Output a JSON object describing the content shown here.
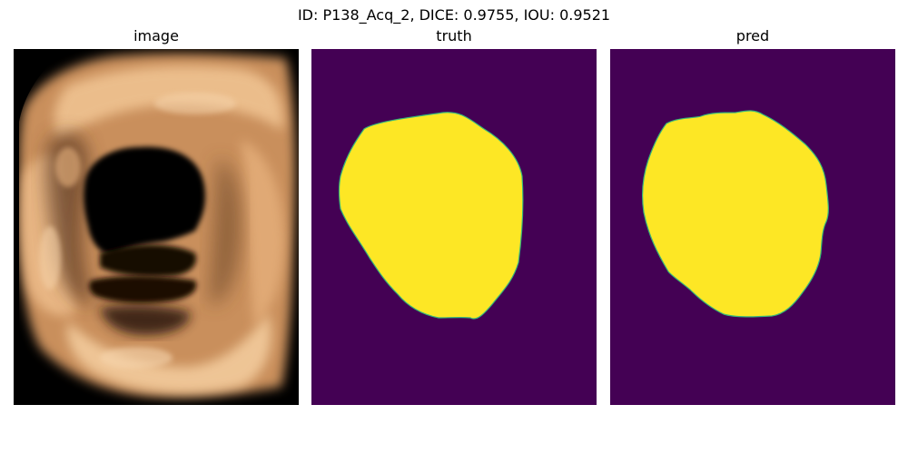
{
  "figure": {
    "title": "ID: P138_Acq_2, DICE: 0.9755, IOU: 0.9521"
  },
  "panels": [
    {
      "title": "image"
    },
    {
      "title": "truth"
    },
    {
      "title": "pred"
    }
  ],
  "colors": {
    "background": "#000000",
    "tissue_light": "#f0c08e",
    "tissue_mid": "#b27a4d",
    "tissue_dark": "#5a3820",
    "mask_background": "#440154",
    "mask_foreground": "#fde725",
    "mask_edge": "#35b779"
  }
}
